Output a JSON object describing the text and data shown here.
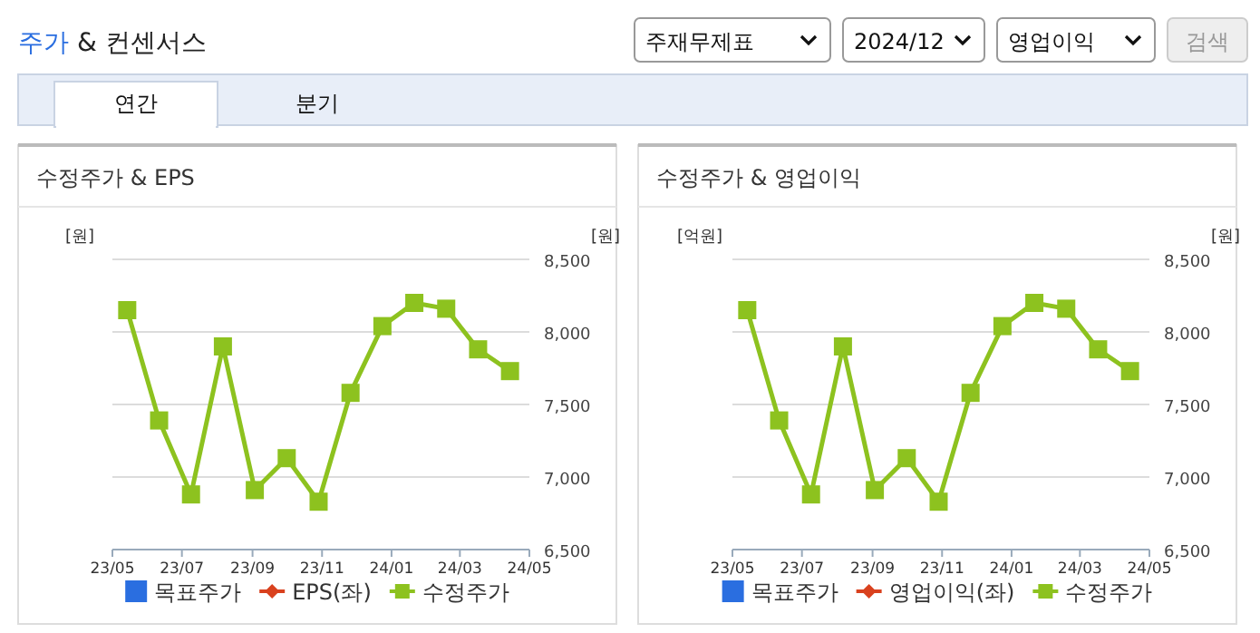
{
  "chart_data": [
    {
      "type": "other",
      "title": "주가 & 컨센서스",
      "annotations": [
        "주재무제표",
        "2024/12",
        "영업이익",
        "검색",
        "연간",
        "분기"
      ]
    },
    {
      "type": "line",
      "title": "수정주가 & EPS",
      "ylabel": "[원]",
      "y2label": "[원]",
      "x": [
        "2023-05-14",
        "2023-06-11",
        "2023-07-09",
        "2023-08-06",
        "2023-09-03",
        "2023-10-01",
        "2023-10-29",
        "2023-11-26",
        "2023-12-24",
        "2024-01-21",
        "2024-02-18",
        "2024-03-17",
        "2024-04-14"
      ],
      "xlim": [
        "2023-05-01",
        "2024-05-01"
      ],
      "xticks": [
        {
          "value": "2023-05-01",
          "label": "23/05"
        },
        {
          "value": "2023-07-01",
          "label": "23/07"
        },
        {
          "value": "2023-09-01",
          "label": "23/09"
        },
        {
          "value": "2023-11-01",
          "label": "23/11"
        },
        {
          "value": "2024-01-01",
          "label": "24/01"
        },
        {
          "value": "2024-03-01",
          "label": "24/03"
        },
        {
          "value": "2024-05-01",
          "label": "24/05"
        }
      ],
      "y2lim": [
        6500,
        8500
      ],
      "y2ticks": [
        {
          "value": 6500,
          "label": "6,500"
        },
        {
          "value": 7000,
          "label": "7,000"
        },
        {
          "value": 7500,
          "label": "7,500"
        },
        {
          "value": 8000,
          "label": "8,000"
        },
        {
          "value": 8500,
          "label": "8,500"
        }
      ],
      "grid": "y",
      "legend": "bottom",
      "series": [
        {
          "name": "목표주가",
          "type": "scatter",
          "marker": "square",
          "color": "#2a6ee0",
          "values": [
            null,
            null,
            null,
            null,
            null,
            null,
            null,
            null,
            null,
            null,
            null,
            null,
            null
          ]
        },
        {
          "name": "EPS(좌)",
          "type": "line",
          "marker": "diamond",
          "color": "#d9411e",
          "values": [
            null,
            null,
            null,
            null,
            null,
            null,
            null,
            null,
            null,
            null,
            null,
            null,
            null
          ]
        },
        {
          "name": "수정주가",
          "type": "line",
          "marker": "square",
          "axis": "y2",
          "color": "#8dc21f",
          "values": [
            8150,
            7390,
            6880,
            7900,
            6910,
            7130,
            6830,
            7580,
            8040,
            8200,
            8160,
            7880,
            7730
          ]
        }
      ]
    },
    {
      "type": "line",
      "title": "수정주가 & 영업이익",
      "ylabel": "[억원]",
      "y2label": "[원]",
      "x": [
        "2023-05-14",
        "2023-06-11",
        "2023-07-09",
        "2023-08-06",
        "2023-09-03",
        "2023-10-01",
        "2023-10-29",
        "2023-11-26",
        "2023-12-24",
        "2024-01-21",
        "2024-02-18",
        "2024-03-17",
        "2024-04-14"
      ],
      "xlim": [
        "2023-05-01",
        "2024-05-01"
      ],
      "xticks": [
        {
          "value": "2023-05-01",
          "label": "23/05"
        },
        {
          "value": "2023-07-01",
          "label": "23/07"
        },
        {
          "value": "2023-09-01",
          "label": "23/09"
        },
        {
          "value": "2023-11-01",
          "label": "23/11"
        },
        {
          "value": "2024-01-01",
          "label": "24/01"
        },
        {
          "value": "2024-03-01",
          "label": "24/03"
        },
        {
          "value": "2024-05-01",
          "label": "24/05"
        }
      ],
      "y2lim": [
        6500,
        8500
      ],
      "y2ticks": [
        {
          "value": 6500,
          "label": "6,500"
        },
        {
          "value": 7000,
          "label": "7,000"
        },
        {
          "value": 7500,
          "label": "7,500"
        },
        {
          "value": 8000,
          "label": "8,000"
        },
        {
          "value": 8500,
          "label": "8,500"
        }
      ],
      "grid": "y",
      "legend": "bottom",
      "series": [
        {
          "name": "목표주가",
          "type": "scatter",
          "marker": "square",
          "color": "#2a6ee0",
          "values": [
            null,
            null,
            null,
            null,
            null,
            null,
            null,
            null,
            null,
            null,
            null,
            null,
            null
          ]
        },
        {
          "name": "영업이익(좌)",
          "type": "line",
          "marker": "diamond",
          "color": "#d9411e",
          "values": [
            null,
            null,
            null,
            null,
            null,
            null,
            null,
            null,
            null,
            null,
            null,
            null,
            null
          ]
        },
        {
          "name": "수정주가",
          "type": "line",
          "marker": "square",
          "axis": "y2",
          "color": "#8dc21f",
          "values": [
            8150,
            7390,
            6880,
            7900,
            6910,
            7130,
            6830,
            7580,
            8040,
            8200,
            8160,
            7880,
            7730
          ]
        }
      ]
    }
  ]
}
